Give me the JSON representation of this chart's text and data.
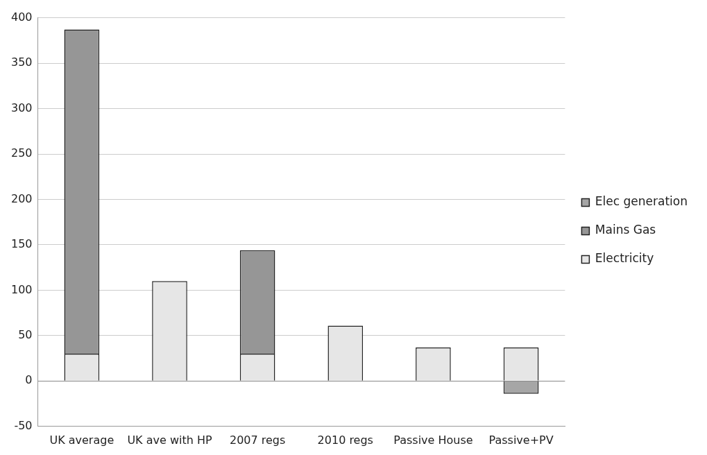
{
  "chart_data": {
    "type": "bar",
    "stacked": true,
    "categories": [
      "UK average",
      "UK ave with HP",
      "2007 regs",
      "2010 regs",
      "Passive House",
      "Passive+PV"
    ],
    "series": [
      {
        "name": "Electricity",
        "color": "#e6e6e6",
        "values": [
          30,
          110,
          30,
          61,
          37,
          37
        ]
      },
      {
        "name": "Mains Gas",
        "color": "#969696",
        "values": [
          357,
          null,
          114,
          null,
          null,
          null
        ]
      },
      {
        "name": "Elec generation",
        "color": "#a6a6a6",
        "values": [
          null,
          null,
          null,
          null,
          null,
          -14
        ]
      }
    ],
    "ylim": [
      -50,
      400
    ],
    "yticks": [
      -50,
      0,
      50,
      100,
      150,
      200,
      250,
      300,
      350,
      400
    ],
    "grid": "y",
    "legend": "right"
  }
}
